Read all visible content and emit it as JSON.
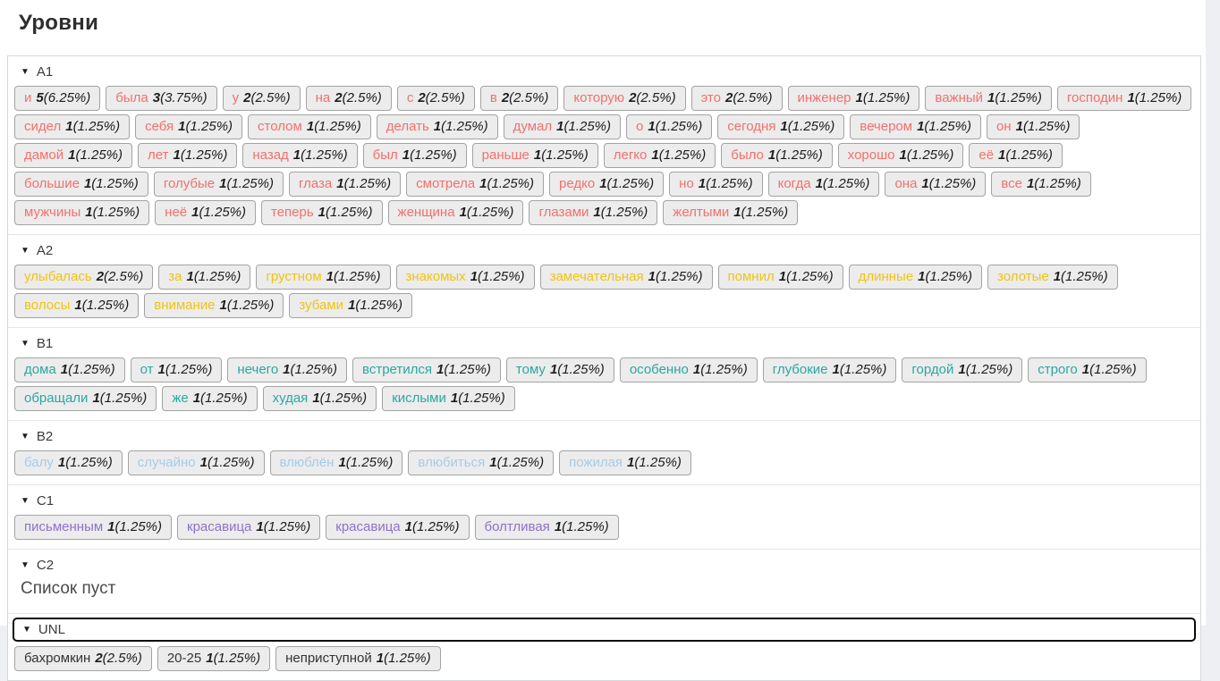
{
  "page": {
    "title": "Уровни"
  },
  "icons": {
    "collapse": "▼"
  },
  "colors": {
    "A1": "#f4706b",
    "A2": "#f1c40f",
    "B1": "#2aa8a0",
    "B2": "#a4cce9",
    "C1": "#8d72c9",
    "C2": "#4a4a4a",
    "UNL": "#333333"
  },
  "levels": [
    {
      "label": "A1",
      "color": "#f4706b",
      "focused": false,
      "empty_text": "",
      "words": [
        {
          "word": "и",
          "count": "5",
          "pct": "(6.25%)"
        },
        {
          "word": "была",
          "count": "3",
          "pct": "(3.75%)"
        },
        {
          "word": "у",
          "count": "2",
          "pct": "(2.5%)"
        },
        {
          "word": "на",
          "count": "2",
          "pct": "(2.5%)"
        },
        {
          "word": "с",
          "count": "2",
          "pct": "(2.5%)"
        },
        {
          "word": "в",
          "count": "2",
          "pct": "(2.5%)"
        },
        {
          "word": "которую",
          "count": "2",
          "pct": "(2.5%)"
        },
        {
          "word": "это",
          "count": "2",
          "pct": "(2.5%)"
        },
        {
          "word": "инженер",
          "count": "1",
          "pct": "(1.25%)"
        },
        {
          "word": "важный",
          "count": "1",
          "pct": "(1.25%)"
        },
        {
          "word": "господин",
          "count": "1",
          "pct": "(1.25%)"
        },
        {
          "word": "сидел",
          "count": "1",
          "pct": "(1.25%)"
        },
        {
          "word": "себя",
          "count": "1",
          "pct": "(1.25%)"
        },
        {
          "word": "столом",
          "count": "1",
          "pct": "(1.25%)"
        },
        {
          "word": "делать",
          "count": "1",
          "pct": "(1.25%)"
        },
        {
          "word": "думал",
          "count": "1",
          "pct": "(1.25%)"
        },
        {
          "word": "о",
          "count": "1",
          "pct": "(1.25%)"
        },
        {
          "word": "сегодня",
          "count": "1",
          "pct": "(1.25%)"
        },
        {
          "word": "вечером",
          "count": "1",
          "pct": "(1.25%)"
        },
        {
          "word": "он",
          "count": "1",
          "pct": "(1.25%)"
        },
        {
          "word": "дамой",
          "count": "1",
          "pct": "(1.25%)"
        },
        {
          "word": "лет",
          "count": "1",
          "pct": "(1.25%)"
        },
        {
          "word": "назад",
          "count": "1",
          "pct": "(1.25%)"
        },
        {
          "word": "был",
          "count": "1",
          "pct": "(1.25%)"
        },
        {
          "word": "раньше",
          "count": "1",
          "pct": "(1.25%)"
        },
        {
          "word": "легко",
          "count": "1",
          "pct": "(1.25%)"
        },
        {
          "word": "было",
          "count": "1",
          "pct": "(1.25%)"
        },
        {
          "word": "хорошо",
          "count": "1",
          "pct": "(1.25%)"
        },
        {
          "word": "её",
          "count": "1",
          "pct": "(1.25%)"
        },
        {
          "word": "большие",
          "count": "1",
          "pct": "(1.25%)"
        },
        {
          "word": "голубые",
          "count": "1",
          "pct": "(1.25%)"
        },
        {
          "word": "глаза",
          "count": "1",
          "pct": "(1.25%)"
        },
        {
          "word": "смотрела",
          "count": "1",
          "pct": "(1.25%)"
        },
        {
          "word": "редко",
          "count": "1",
          "pct": "(1.25%)"
        },
        {
          "word": "но",
          "count": "1",
          "pct": "(1.25%)"
        },
        {
          "word": "когда",
          "count": "1",
          "pct": "(1.25%)"
        },
        {
          "word": "она",
          "count": "1",
          "pct": "(1.25%)"
        },
        {
          "word": "все",
          "count": "1",
          "pct": "(1.25%)"
        },
        {
          "word": "мужчины",
          "count": "1",
          "pct": "(1.25%)"
        },
        {
          "word": "неё",
          "count": "1",
          "pct": "(1.25%)"
        },
        {
          "word": "теперь",
          "count": "1",
          "pct": "(1.25%)"
        },
        {
          "word": "женщина",
          "count": "1",
          "pct": "(1.25%)"
        },
        {
          "word": "глазами",
          "count": "1",
          "pct": "(1.25%)"
        },
        {
          "word": "желтыми",
          "count": "1",
          "pct": "(1.25%)"
        }
      ]
    },
    {
      "label": "A2",
      "color": "#f1c40f",
      "focused": false,
      "empty_text": "",
      "words": [
        {
          "word": "улыбалась",
          "count": "2",
          "pct": "(2.5%)"
        },
        {
          "word": "за",
          "count": "1",
          "pct": "(1.25%)"
        },
        {
          "word": "грустном",
          "count": "1",
          "pct": "(1.25%)"
        },
        {
          "word": "знакомых",
          "count": "1",
          "pct": "(1.25%)"
        },
        {
          "word": "замечательная",
          "count": "1",
          "pct": "(1.25%)"
        },
        {
          "word": "помнил",
          "count": "1",
          "pct": "(1.25%)"
        },
        {
          "word": "длинные",
          "count": "1",
          "pct": "(1.25%)"
        },
        {
          "word": "золотые",
          "count": "1",
          "pct": "(1.25%)"
        },
        {
          "word": "волосы",
          "count": "1",
          "pct": "(1.25%)"
        },
        {
          "word": "внимание",
          "count": "1",
          "pct": "(1.25%)"
        },
        {
          "word": "зубами",
          "count": "1",
          "pct": "(1.25%)"
        }
      ]
    },
    {
      "label": "B1",
      "color": "#2aa8a0",
      "focused": false,
      "empty_text": "",
      "words": [
        {
          "word": "дома",
          "count": "1",
          "pct": "(1.25%)"
        },
        {
          "word": "от",
          "count": "1",
          "pct": "(1.25%)"
        },
        {
          "word": "нечего",
          "count": "1",
          "pct": "(1.25%)"
        },
        {
          "word": "встретился",
          "count": "1",
          "pct": "(1.25%)"
        },
        {
          "word": "тому",
          "count": "1",
          "pct": "(1.25%)"
        },
        {
          "word": "особенно",
          "count": "1",
          "pct": "(1.25%)"
        },
        {
          "word": "глубокие",
          "count": "1",
          "pct": "(1.25%)"
        },
        {
          "word": "гордой",
          "count": "1",
          "pct": "(1.25%)"
        },
        {
          "word": "строго",
          "count": "1",
          "pct": "(1.25%)"
        },
        {
          "word": "обращали",
          "count": "1",
          "pct": "(1.25%)"
        },
        {
          "word": "же",
          "count": "1",
          "pct": "(1.25%)"
        },
        {
          "word": "худая",
          "count": "1",
          "pct": "(1.25%)"
        },
        {
          "word": "кислыми",
          "count": "1",
          "pct": "(1.25%)"
        }
      ]
    },
    {
      "label": "B2",
      "color": "#a4cce9",
      "focused": false,
      "empty_text": "",
      "words": [
        {
          "word": "балу",
          "count": "1",
          "pct": "(1.25%)"
        },
        {
          "word": "случайно",
          "count": "1",
          "pct": "(1.25%)"
        },
        {
          "word": "влюблён",
          "count": "1",
          "pct": "(1.25%)"
        },
        {
          "word": "влюбиться",
          "count": "1",
          "pct": "(1.25%)"
        },
        {
          "word": "пожилая",
          "count": "1",
          "pct": "(1.25%)"
        }
      ]
    },
    {
      "label": "C1",
      "color": "#8d72c9",
      "focused": false,
      "empty_text": "",
      "words": [
        {
          "word": "письменным",
          "count": "1",
          "pct": "(1.25%)"
        },
        {
          "word": "красавица",
          "count": "1",
          "pct": "(1.25%)"
        },
        {
          "word": "красавица",
          "count": "1",
          "pct": "(1.25%)"
        },
        {
          "word": "болтливая",
          "count": "1",
          "pct": "(1.25%)"
        }
      ]
    },
    {
      "label": "C2",
      "color": "#4a4a4a",
      "focused": false,
      "empty_text": "Список пуст",
      "words": []
    },
    {
      "label": "UNL",
      "color": "#333333",
      "focused": true,
      "empty_text": "",
      "words": [
        {
          "word": "бахромкин",
          "count": "2",
          "pct": "(2.5%)"
        },
        {
          "word": "20-25",
          "count": "1",
          "pct": "(1.25%)"
        },
        {
          "word": "неприступной",
          "count": "1",
          "pct": "(1.25%)"
        }
      ]
    }
  ]
}
